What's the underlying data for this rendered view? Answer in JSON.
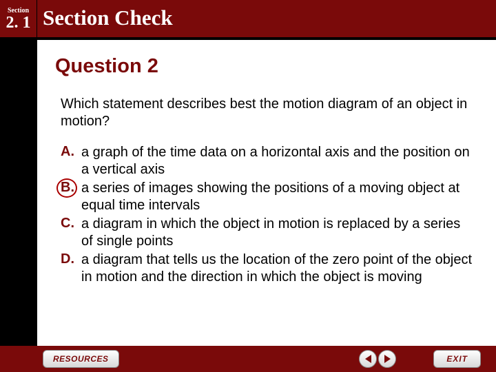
{
  "header": {
    "section_label": "Section",
    "section_number": "2. 1",
    "title": "Section Check"
  },
  "content": {
    "question_title": "Question 2",
    "question_text": "Which statement describes best the motion diagram of an object in motion?",
    "options": [
      {
        "letter": "A.",
        "text": "a graph of the time data on a horizontal axis and the position on a vertical axis",
        "circled": false
      },
      {
        "letter": "B.",
        "text": "a series of images showing the positions of a moving object at equal time intervals",
        "circled": true
      },
      {
        "letter": "C.",
        "text": "a diagram in which the object in motion is replaced by a series of single points",
        "circled": false
      },
      {
        "letter": "D.",
        "text": "a diagram that tells us the location of the zero point of the object in motion and the direction in which the object is moving",
        "circled": false
      }
    ]
  },
  "footer": {
    "resources_label": "RESOURCES",
    "exit_label": "EXIT"
  },
  "colors": {
    "brand": "#7a0a0a",
    "bg": "#000000",
    "panel": "#ffffff"
  }
}
